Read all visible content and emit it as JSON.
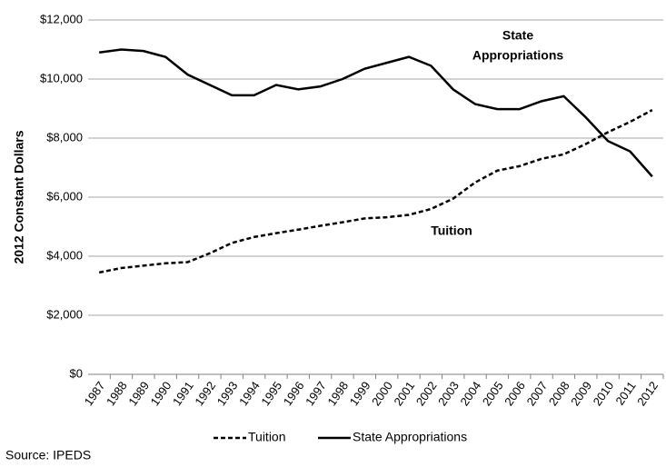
{
  "chart_data": {
    "type": "line",
    "ylabel": "2012 Constant Dollars",
    "categories": [
      "1987",
      "1988",
      "1989",
      "1990",
      "1991",
      "1992",
      "1993",
      "1994",
      "1995",
      "1996",
      "1997",
      "1998",
      "1999",
      "2000",
      "2001",
      "2002",
      "2003",
      "2004",
      "2005",
      "2006",
      "2007",
      "2008",
      "2009",
      "2010",
      "2011",
      "2012"
    ],
    "series": [
      {
        "name": "Tuition",
        "color": "#000000",
        "style": "dashed",
        "values": [
          3450,
          3600,
          3680,
          3760,
          3800,
          4100,
          4450,
          4650,
          4780,
          4900,
          5030,
          5150,
          5280,
          5320,
          5400,
          5600,
          5950,
          6500,
          6900,
          7050,
          7300,
          7450,
          7800,
          8200,
          8550,
          8950
        ]
      },
      {
        "name": "State Appropriations",
        "color": "#000000",
        "style": "solid",
        "values": [
          10900,
          11000,
          10950,
          10750,
          10150,
          9800,
          9450,
          9450,
          9800,
          9650,
          9750,
          10000,
          10350,
          10550,
          10750,
          10450,
          9650,
          9150,
          8980,
          8980,
          9250,
          9420,
          8700,
          7900,
          7550,
          6700
        ]
      }
    ],
    "ylim": [
      0,
      12000
    ],
    "yticks": [
      {
        "value": 0,
        "label": "$0"
      },
      {
        "value": 2000,
        "label": "$2,000"
      },
      {
        "value": 4000,
        "label": "$4,000"
      },
      {
        "value": 6000,
        "label": "$6,000"
      },
      {
        "value": 8000,
        "label": "$8,000"
      },
      {
        "value": 10000,
        "label": "$10,000"
      },
      {
        "value": 12000,
        "label": "$12,000"
      }
    ],
    "grid": true,
    "legend": "bottom",
    "annotations": [
      {
        "lines": [
          "State",
          "Appropriations"
        ]
      },
      {
        "lines": [
          "Tuition"
        ]
      }
    ],
    "source": "Source: IPEDS"
  }
}
